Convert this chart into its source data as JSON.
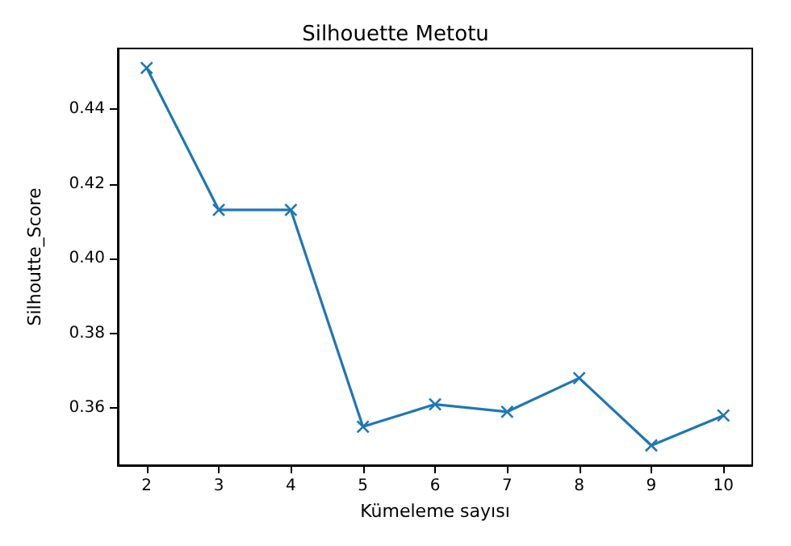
{
  "chart_data": {
    "type": "line",
    "title": "Silhouette Metotu",
    "xlabel": "Kümeleme sayısı",
    "ylabel": "Silhoutte_Score",
    "x": [
      2,
      3,
      4,
      5,
      6,
      7,
      8,
      9,
      10
    ],
    "series": [
      {
        "color": "#1f77b4",
        "values": [
          0.451,
          0.413,
          0.413,
          0.355,
          0.361,
          0.359,
          0.368,
          0.35,
          0.358
        ]
      }
    ],
    "xlim": [
      1.6,
      10.4
    ],
    "xticks": [
      2,
      3,
      4,
      5,
      6,
      7,
      8,
      9,
      10
    ],
    "ylim": [
      0.3447,
      0.4562
    ],
    "yticks": [
      0.36,
      0.38,
      {
        "value": 0.4,
        "label": "0.40"
      },
      0.42,
      0.44
    ],
    "grid": false,
    "marker": "cross",
    "line_style": "solid"
  }
}
